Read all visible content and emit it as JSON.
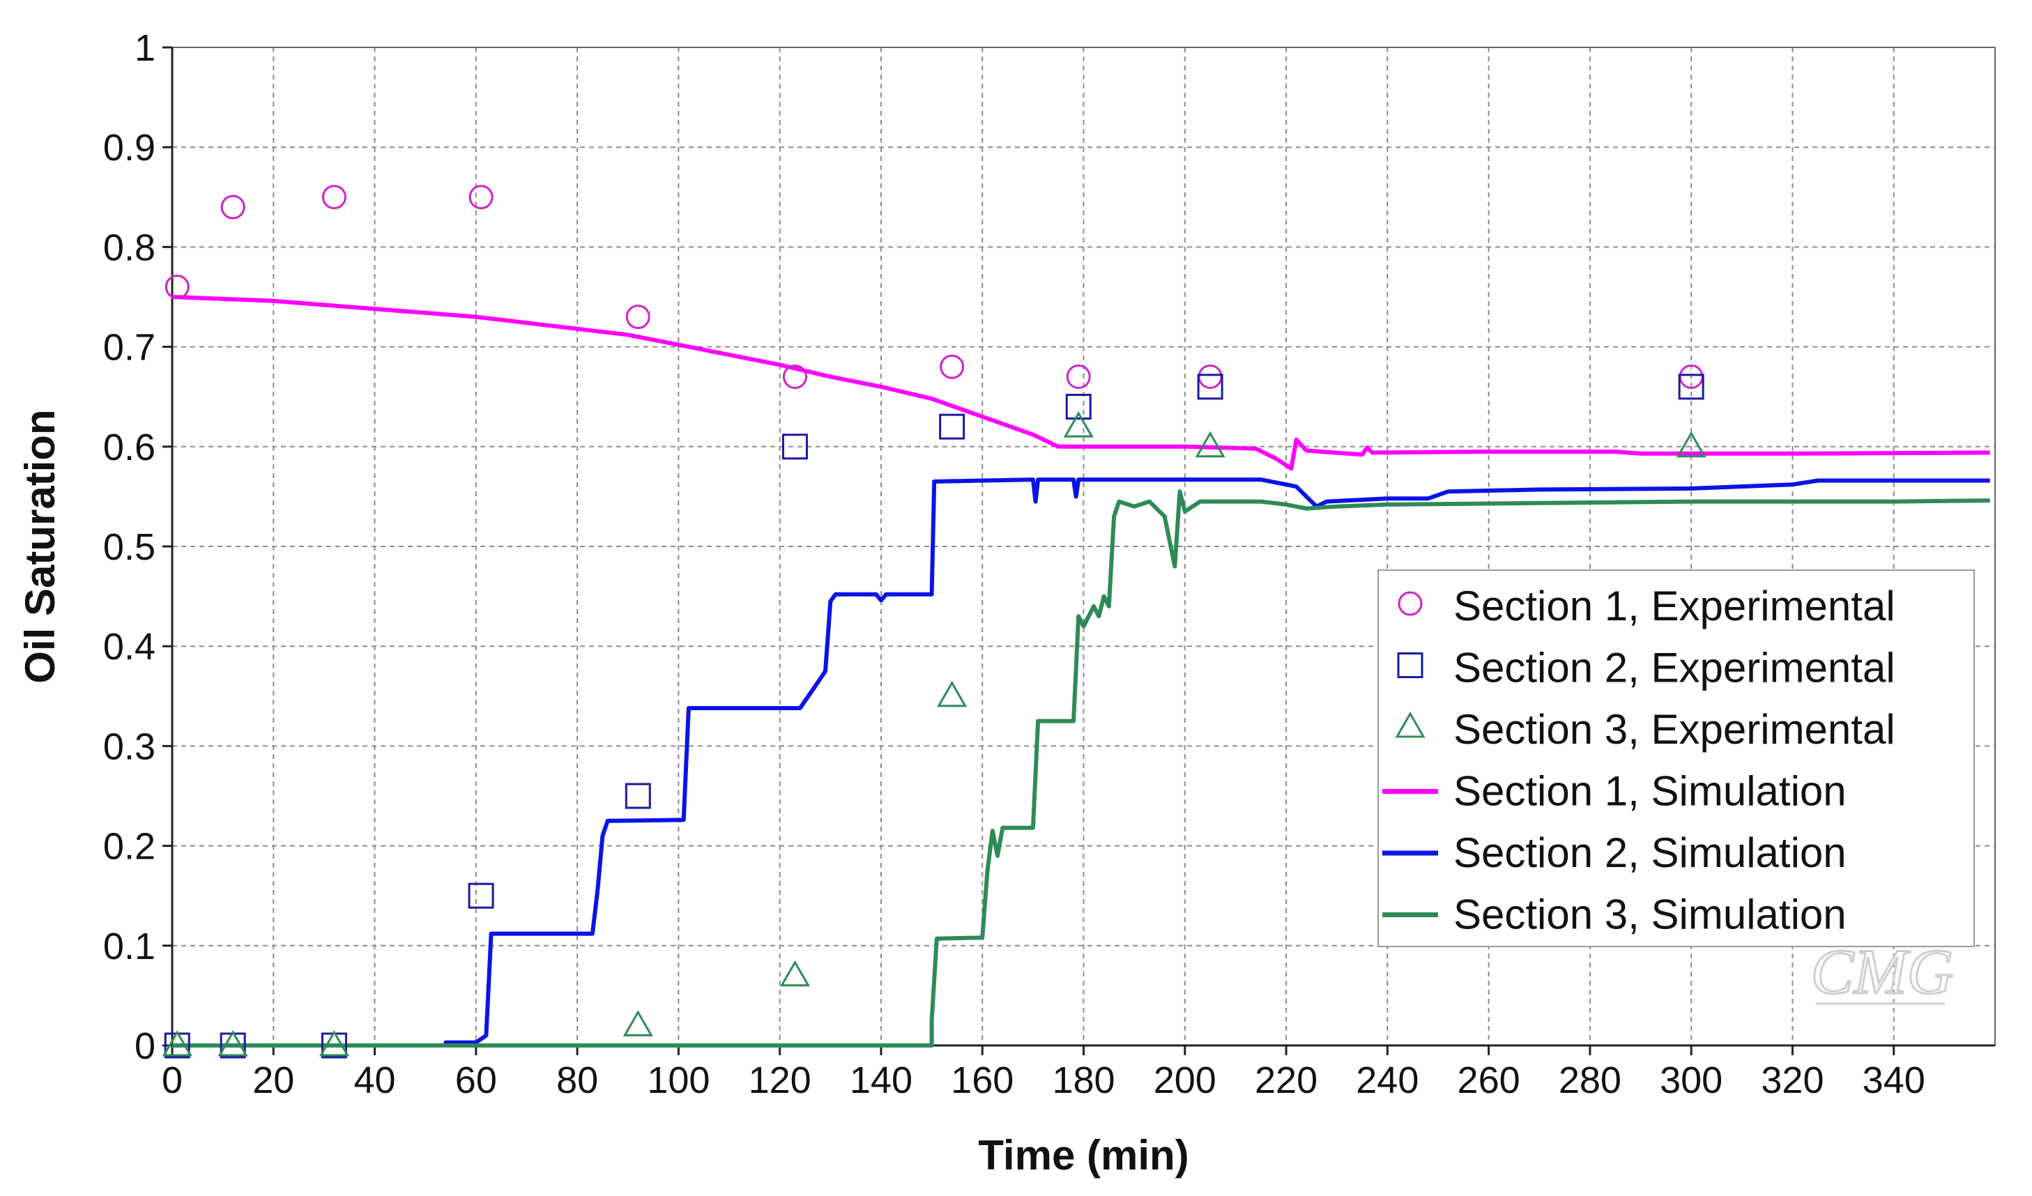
{
  "chart_data": {
    "type": "line",
    "title": "",
    "xlabel": "Time (min)",
    "ylabel": "Oil Saturation",
    "xlim": [
      0,
      360
    ],
    "ylim": [
      0,
      1
    ],
    "x_ticks": [
      0,
      20,
      40,
      60,
      80,
      100,
      120,
      140,
      160,
      180,
      200,
      220,
      240,
      260,
      280,
      300,
      320,
      340
    ],
    "y_ticks": [
      0,
      0.1,
      0.2,
      0.3,
      0.4,
      0.5,
      0.6,
      0.7,
      0.8,
      0.9,
      1
    ],
    "y_tick_labels": [
      "0",
      "0.1",
      "0.2",
      "0.3",
      "0.4",
      "0.5",
      "0.6",
      "0.7",
      "0.8",
      "0.9",
      "1"
    ],
    "grid": true,
    "legend_position": "center-right",
    "watermark": "CMG",
    "series": [
      {
        "name": "Section 1, Experimental",
        "kind": "marker",
        "marker": "circle",
        "color": "#d020d0",
        "points": [
          [
            1,
            0.76
          ],
          [
            12,
            0.84
          ],
          [
            32,
            0.85
          ],
          [
            61,
            0.85
          ],
          [
            92,
            0.73
          ],
          [
            123,
            0.67
          ],
          [
            154,
            0.68
          ],
          [
            179,
            0.67
          ],
          [
            205,
            0.67
          ],
          [
            300,
            0.67
          ]
        ]
      },
      {
        "name": "Section 2, Experimental",
        "kind": "marker",
        "marker": "square",
        "color": "#1a1aa0",
        "points": [
          [
            1,
            0.0
          ],
          [
            12,
            0.0
          ],
          [
            32,
            0.0
          ],
          [
            61,
            0.15
          ],
          [
            92,
            0.25
          ],
          [
            123,
            0.6
          ],
          [
            154,
            0.62
          ],
          [
            179,
            0.64
          ],
          [
            205,
            0.66
          ],
          [
            300,
            0.66
          ]
        ]
      },
      {
        "name": "Section 3, Experimental",
        "kind": "marker",
        "marker": "triangle",
        "color": "#2e8b57",
        "points": [
          [
            1,
            0.0
          ],
          [
            12,
            0.0
          ],
          [
            32,
            0.0
          ],
          [
            92,
            0.02
          ],
          [
            123,
            0.07
          ],
          [
            154,
            0.35
          ],
          [
            179,
            0.62
          ],
          [
            205,
            0.6
          ],
          [
            300,
            0.6
          ]
        ]
      },
      {
        "name": "Section 1, Simulation",
        "kind": "line",
        "color": "#ff00ff",
        "points": [
          [
            0,
            0.75
          ],
          [
            10,
            0.748
          ],
          [
            20,
            0.746
          ],
          [
            30,
            0.742
          ],
          [
            40,
            0.738
          ],
          [
            50,
            0.734
          ],
          [
            60,
            0.73
          ],
          [
            70,
            0.724
          ],
          [
            80,
            0.718
          ],
          [
            90,
            0.712
          ],
          [
            100,
            0.702
          ],
          [
            110,
            0.692
          ],
          [
            120,
            0.682
          ],
          [
            130,
            0.67
          ],
          [
            140,
            0.66
          ],
          [
            150,
            0.648
          ],
          [
            160,
            0.63
          ],
          [
            170,
            0.612
          ],
          [
            175,
            0.6
          ],
          [
            200,
            0.6
          ],
          [
            214,
            0.598
          ],
          [
            218,
            0.588
          ],
          [
            221,
            0.578
          ],
          [
            222,
            0.607
          ],
          [
            224,
            0.596
          ],
          [
            235,
            0.592
          ],
          [
            236,
            0.599
          ],
          [
            237,
            0.594
          ],
          [
            260,
            0.595
          ],
          [
            285,
            0.595
          ],
          [
            290,
            0.593
          ],
          [
            320,
            0.593
          ],
          [
            359,
            0.594
          ]
        ]
      },
      {
        "name": "Section 2, Simulation",
        "kind": "line",
        "color": "#0a14e6",
        "points": [
          [
            0,
            0.0
          ],
          [
            54,
            0.0
          ],
          [
            54,
            0.003
          ],
          [
            60,
            0.003
          ],
          [
            62,
            0.01
          ],
          [
            63,
            0.112
          ],
          [
            83,
            0.112
          ],
          [
            84,
            0.155
          ],
          [
            85,
            0.21
          ],
          [
            86,
            0.225
          ],
          [
            101,
            0.226
          ],
          [
            102,
            0.338
          ],
          [
            124,
            0.338
          ],
          [
            127,
            0.36
          ],
          [
            129,
            0.375
          ],
          [
            130,
            0.445
          ],
          [
            131,
            0.452
          ],
          [
            139,
            0.452
          ],
          [
            140,
            0.446
          ],
          [
            141,
            0.452
          ],
          [
            150,
            0.452
          ],
          [
            150.5,
            0.565
          ],
          [
            170,
            0.567
          ],
          [
            170.5,
            0.545
          ],
          [
            171,
            0.567
          ],
          [
            178,
            0.567
          ],
          [
            178.5,
            0.55
          ],
          [
            179,
            0.567
          ],
          [
            215,
            0.567
          ],
          [
            222,
            0.56
          ],
          [
            226,
            0.54
          ],
          [
            228,
            0.545
          ],
          [
            240,
            0.548
          ],
          [
            248,
            0.548
          ],
          [
            252,
            0.555
          ],
          [
            270,
            0.557
          ],
          [
            300,
            0.558
          ],
          [
            320,
            0.562
          ],
          [
            325,
            0.566
          ],
          [
            359,
            0.566
          ]
        ]
      },
      {
        "name": "Section 3, Simulation",
        "kind": "line",
        "color": "#2e8b57",
        "points": [
          [
            0,
            0.0
          ],
          [
            150,
            0.0
          ],
          [
            150,
            0.025
          ],
          [
            151,
            0.107
          ],
          [
            160,
            0.108
          ],
          [
            161,
            0.175
          ],
          [
            162,
            0.215
          ],
          [
            163,
            0.19
          ],
          [
            164,
            0.218
          ],
          [
            170,
            0.218
          ],
          [
            171,
            0.325
          ],
          [
            178,
            0.325
          ],
          [
            179,
            0.43
          ],
          [
            180,
            0.42
          ],
          [
            182,
            0.44
          ],
          [
            183,
            0.43
          ],
          [
            184,
            0.45
          ],
          [
            185,
            0.44
          ],
          [
            186,
            0.53
          ],
          [
            187,
            0.545
          ],
          [
            190,
            0.54
          ],
          [
            193,
            0.545
          ],
          [
            196,
            0.53
          ],
          [
            197,
            0.505
          ],
          [
            198,
            0.48
          ],
          [
            199,
            0.555
          ],
          [
            200,
            0.535
          ],
          [
            203,
            0.545
          ],
          [
            215,
            0.545
          ],
          [
            220,
            0.542
          ],
          [
            224,
            0.538
          ],
          [
            230,
            0.54
          ],
          [
            240,
            0.542
          ],
          [
            300,
            0.545
          ],
          [
            340,
            0.545
          ],
          [
            359,
            0.546
          ]
        ]
      }
    ]
  }
}
